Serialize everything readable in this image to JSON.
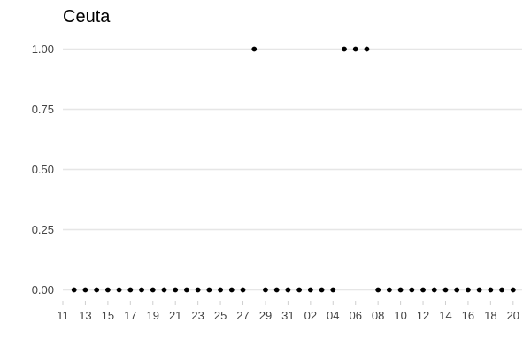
{
  "chart_data": {
    "type": "scatter",
    "title": "Ceuta",
    "xlabel": "",
    "ylabel": "",
    "ylim": [
      0,
      1
    ],
    "grid": true,
    "y_ticks": [
      0,
      0.25,
      0.5,
      0.75,
      1
    ],
    "y_tick_labels": [
      "0.00",
      "0.25",
      "0.50",
      "0.75",
      "1.00"
    ],
    "x_tick_labels": [
      "11",
      "13",
      "15",
      "17",
      "19",
      "21",
      "23",
      "25",
      "27",
      "29",
      "31",
      "02",
      "04",
      "06",
      "08",
      "10",
      "12",
      "14",
      "16",
      "18",
      "20"
    ],
    "point_color": "#000000",
    "x": [
      "12",
      "13",
      "14",
      "15",
      "16",
      "17",
      "18",
      "19",
      "20",
      "21",
      "22",
      "23",
      "24",
      "25",
      "26",
      "27",
      "28",
      "29",
      "30",
      "31",
      "01",
      "02",
      "03",
      "04",
      "05",
      "06",
      "07",
      "08",
      "09",
      "10",
      "11",
      "12",
      "13",
      "14",
      "15",
      "16",
      "17",
      "18",
      "19",
      "20"
    ],
    "y": [
      0,
      0,
      0,
      0,
      0,
      0,
      0,
      0,
      0,
      0,
      0,
      0,
      0,
      0,
      0,
      0,
      1,
      0,
      0,
      0,
      0,
      0,
      0,
      0,
      1,
      1,
      1,
      0,
      0,
      0,
      0,
      0,
      0,
      0,
      0,
      0,
      0,
      0,
      0,
      0
    ]
  }
}
